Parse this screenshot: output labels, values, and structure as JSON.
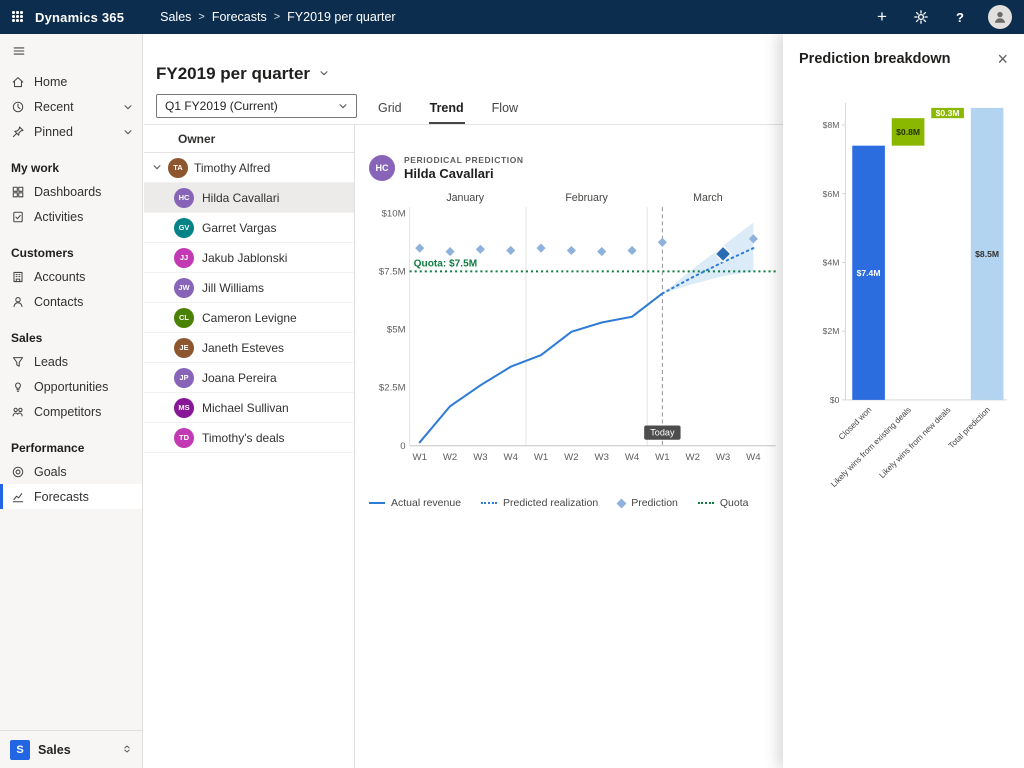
{
  "colors": {
    "navbar": "#0c2d4d",
    "accent": "#2266e3",
    "actual_line": "#2e7cd6",
    "quota_green": "#107c41",
    "closed_won_blue": "#2b6cdf",
    "likely_wins_green": "#8ab800",
    "total_prediction_blue": "#b3d4f0"
  },
  "glyphs": {
    "plus": "+",
    "help": "?",
    "close": "×"
  },
  "topbar": {
    "app_title": "Dynamics 365",
    "separator": ">",
    "breadcrumb": [
      "Sales",
      "Forecasts",
      "FY2019 per quarter"
    ]
  },
  "sidebar": {
    "top_items": [
      {
        "label": "Home"
      },
      {
        "label": "Recent"
      },
      {
        "label": "Pinned"
      }
    ],
    "groups": [
      {
        "title": "My work",
        "items": [
          {
            "label": "Dashboards"
          },
          {
            "label": "Activities"
          }
        ]
      },
      {
        "title": "Customers",
        "items": [
          {
            "label": "Accounts"
          },
          {
            "label": "Contacts"
          }
        ]
      },
      {
        "title": "Sales",
        "items": [
          {
            "label": "Leads"
          },
          {
            "label": "Opportunities"
          },
          {
            "label": "Competitors"
          }
        ]
      },
      {
        "title": "Performance",
        "items": [
          {
            "label": "Goals"
          },
          {
            "label": "Forecasts",
            "active": true
          }
        ]
      }
    ],
    "area_switcher": {
      "badge": "S",
      "label": "Sales"
    }
  },
  "main": {
    "page_title": "FY2019 per quarter",
    "period_selector": "Q1 FY2019 (Current)",
    "tabs": [
      {
        "label": "Grid"
      },
      {
        "label": "Trend",
        "active": true
      },
      {
        "label": "Flow"
      }
    ],
    "owner_column": {
      "header": "Owner",
      "parent": {
        "name": "Timothy Alfred"
      },
      "rows": [
        {
          "name": "Hilda Cavallari",
          "selected": true
        },
        {
          "name": "Garret Vargas"
        },
        {
          "name": "Jakub Jablonski"
        },
        {
          "name": "Jill Williams"
        },
        {
          "name": "Cameron Levigne"
        },
        {
          "name": "Janeth Esteves"
        },
        {
          "name": "Joana Pereira"
        },
        {
          "name": "Michael Sullivan"
        },
        {
          "name": "Timothy's deals"
        }
      ]
    },
    "chart_header": {
      "kicker": "PERIODICAL PREDICTION",
      "name": "Hilda Cavallari"
    }
  },
  "panel": {
    "title": "Prediction breakdown"
  },
  "chart_data": [
    {
      "type": "line",
      "title": "Periodical prediction — Hilda Cavallari",
      "months": [
        "January",
        "February",
        "March"
      ],
      "weeks": [
        "W1",
        "W2",
        "W3",
        "W4",
        "W1",
        "W2",
        "W3",
        "W4",
        "W1",
        "W2",
        "W3",
        "W4"
      ],
      "y_ticks": [
        "$10M",
        "$7.5M",
        "$5M",
        "$2.5M",
        "0"
      ],
      "y_tick_values": [
        10,
        7.5,
        5,
        2.5,
        0
      ],
      "ylim": [
        0,
        10
      ],
      "quota": {
        "value": 7.5,
        "label": "Quota: $7.5M"
      },
      "today": {
        "week_index": 8,
        "label": "Today"
      },
      "series": [
        {
          "name": "Actual revenue",
          "style": "solid",
          "values": [
            [
              0,
              0.15
            ],
            [
              1,
              1.7
            ],
            [
              2,
              2.6
            ],
            [
              3,
              3.4
            ],
            [
              4,
              3.9
            ],
            [
              5,
              4.9
            ],
            [
              6,
              5.3
            ],
            [
              7,
              5.55
            ],
            [
              8,
              6.55
            ]
          ]
        },
        {
          "name": "Predicted realization",
          "style": "dotted",
          "values": [
            [
              8,
              6.55
            ],
            [
              9,
              7.25
            ],
            [
              10,
              7.9
            ],
            [
              11,
              8.5
            ]
          ]
        },
        {
          "name": "Prediction",
          "style": "diamond",
          "values": [
            [
              0,
              8.5
            ],
            [
              1,
              8.35
            ],
            [
              2,
              8.45
            ],
            [
              3,
              8.4
            ],
            [
              4,
              8.5
            ],
            [
              5,
              8.4
            ],
            [
              6,
              8.35
            ],
            [
              7,
              8.4
            ],
            [
              8,
              8.75
            ],
            [
              11,
              8.9
            ]
          ],
          "selected": [
            10,
            8.25
          ]
        }
      ],
      "band": {
        "upper": [
          [
            8,
            6.55
          ],
          [
            9,
            7.6
          ],
          [
            10,
            8.6
          ],
          [
            11,
            9.6
          ]
        ],
        "lower": [
          [
            8,
            6.55
          ],
          [
            9,
            6.95
          ],
          [
            10,
            7.3
          ],
          [
            11,
            7.5
          ]
        ]
      },
      "legend": [
        "Actual revenue",
        "Predicted realization",
        "Prediction",
        "Quota"
      ]
    },
    {
      "type": "waterfall",
      "title": "Prediction breakdown",
      "categories": [
        "Closed won",
        "Likely wins from existing deals",
        "Likely wins from new deals",
        "Total prediction"
      ],
      "values": [
        7.4,
        0.8,
        0.3,
        8.5
      ],
      "starts": [
        0,
        7.4,
        8.2,
        0
      ],
      "labels": [
        "$7.4M",
        "$0.8M",
        "$0.3M",
        "$8.5M"
      ],
      "y_ticks": [
        "$0",
        "$2M",
        "$4M",
        "$6M",
        "$8M"
      ],
      "y_tick_values": [
        0,
        2,
        4,
        6,
        8
      ],
      "ylim": [
        0,
        8.5
      ],
      "colors": [
        "#2b6cdf",
        "#8ab800",
        "#8ab800",
        "#b3d4f0"
      ],
      "label_colors": [
        "#ffffff",
        "#253300",
        "#ffffff",
        "#323130"
      ]
    }
  ]
}
